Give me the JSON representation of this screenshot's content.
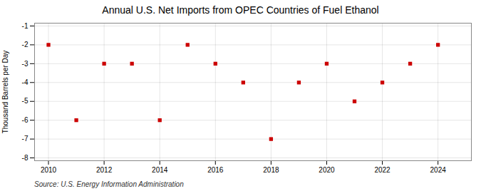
{
  "chart_data": {
    "type": "scatter",
    "title": "Annual U.S. Net Imports from OPEC Countries of Fuel Ethanol",
    "ylabel": "Thousand Barrels per Day",
    "annotation": "Source: U.S. Energy Information Administration",
    "x": [
      2010,
      2011,
      2012,
      2013,
      2014,
      2015,
      2016,
      2017,
      2018,
      2019,
      2020,
      2021,
      2022,
      2023,
      2024
    ],
    "values": [
      -2,
      -6,
      -3,
      -3,
      -6,
      -2,
      -3,
      -4,
      -7,
      -4,
      -3,
      -5,
      -4,
      -3,
      -2
    ],
    "color": "#CC0000",
    "marker": "square",
    "xlim": [
      2009.5,
      2025.2
    ],
    "xticks": [
      2010,
      2012,
      2014,
      2016,
      2018,
      2020,
      2022,
      2024
    ],
    "ylim": [
      -8.15,
      -0.85
    ],
    "yticks": [
      -8,
      -7,
      -6,
      -5,
      -4,
      -3,
      -2,
      -1
    ],
    "grid": true
  }
}
